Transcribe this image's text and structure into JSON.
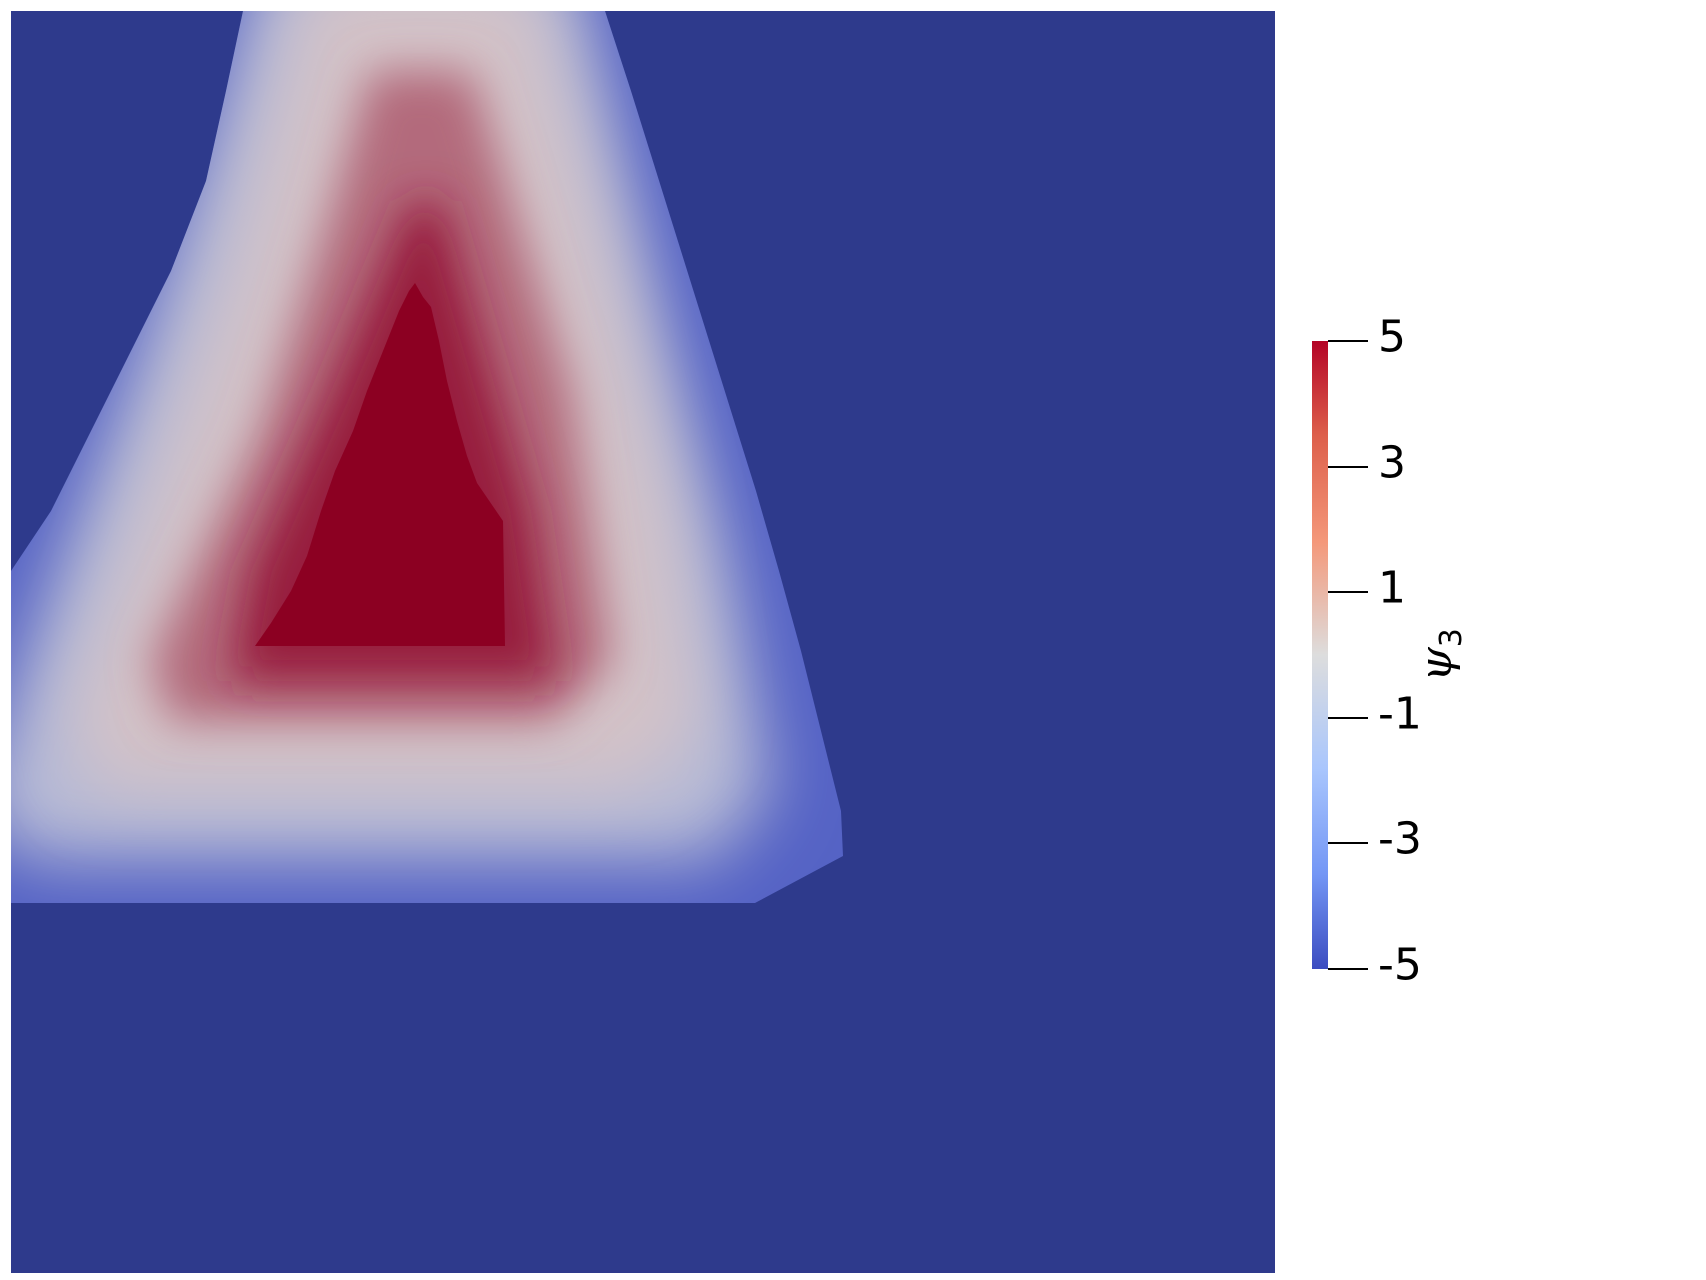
{
  "chart_data": {
    "type": "heatmap",
    "field_name": "ψ",
    "field_subscript": "3",
    "colormap": "coolwarm",
    "colors": {
      "min": "#3b4cc0",
      "mid": "#dddddd",
      "max": "#8c0022",
      "outside": "#2e3a8c"
    },
    "range": [
      -5,
      5
    ],
    "colorbar_ticks": [
      {
        "value": 5,
        "label": "5"
      },
      {
        "value": 3,
        "label": "3"
      },
      {
        "value": 1,
        "label": "1"
      },
      {
        "value": -1,
        "label": "-1"
      },
      {
        "value": -3,
        "label": "-3"
      },
      {
        "value": -5,
        "label": "-5"
      }
    ]
  }
}
